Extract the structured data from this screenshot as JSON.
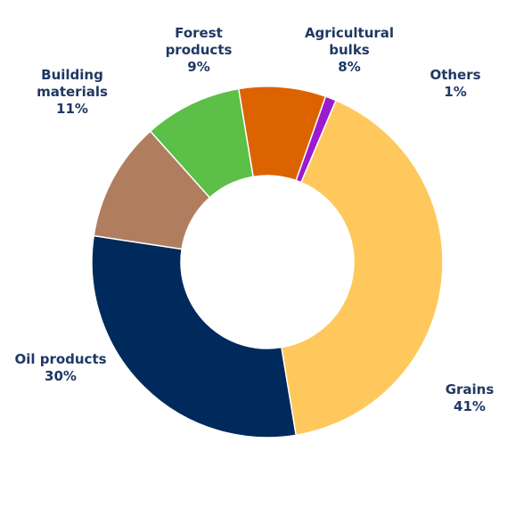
{
  "chart_data": {
    "type": "pie",
    "donut": true,
    "title": "",
    "legend": "none",
    "slices": [
      {
        "name": "Grains",
        "value": 41,
        "label_lines": [
          "Grains"
        ],
        "pct": "41%",
        "color": "#ffc85c"
      },
      {
        "name": "Oil products",
        "value": 30,
        "label_lines": [
          "Oil products"
        ],
        "pct": "30%",
        "color": "#002a5c"
      },
      {
        "name": "Building materials",
        "value": 11,
        "label_lines": [
          "Building",
          "materials"
        ],
        "pct": "11%",
        "color": "#b07e5e"
      },
      {
        "name": "Forest products",
        "value": 9,
        "label_lines": [
          "Forest",
          "products"
        ],
        "pct": "9%",
        "color": "#5bbf48"
      },
      {
        "name": "Agricultural bulks",
        "value": 8,
        "label_lines": [
          "Agricultural",
          "bulks"
        ],
        "pct": "8%",
        "color": "#dd6200"
      },
      {
        "name": "Others",
        "value": 1,
        "label_lines": [
          "Others"
        ],
        "pct": "1%",
        "color": "#9b1bce"
      }
    ]
  }
}
